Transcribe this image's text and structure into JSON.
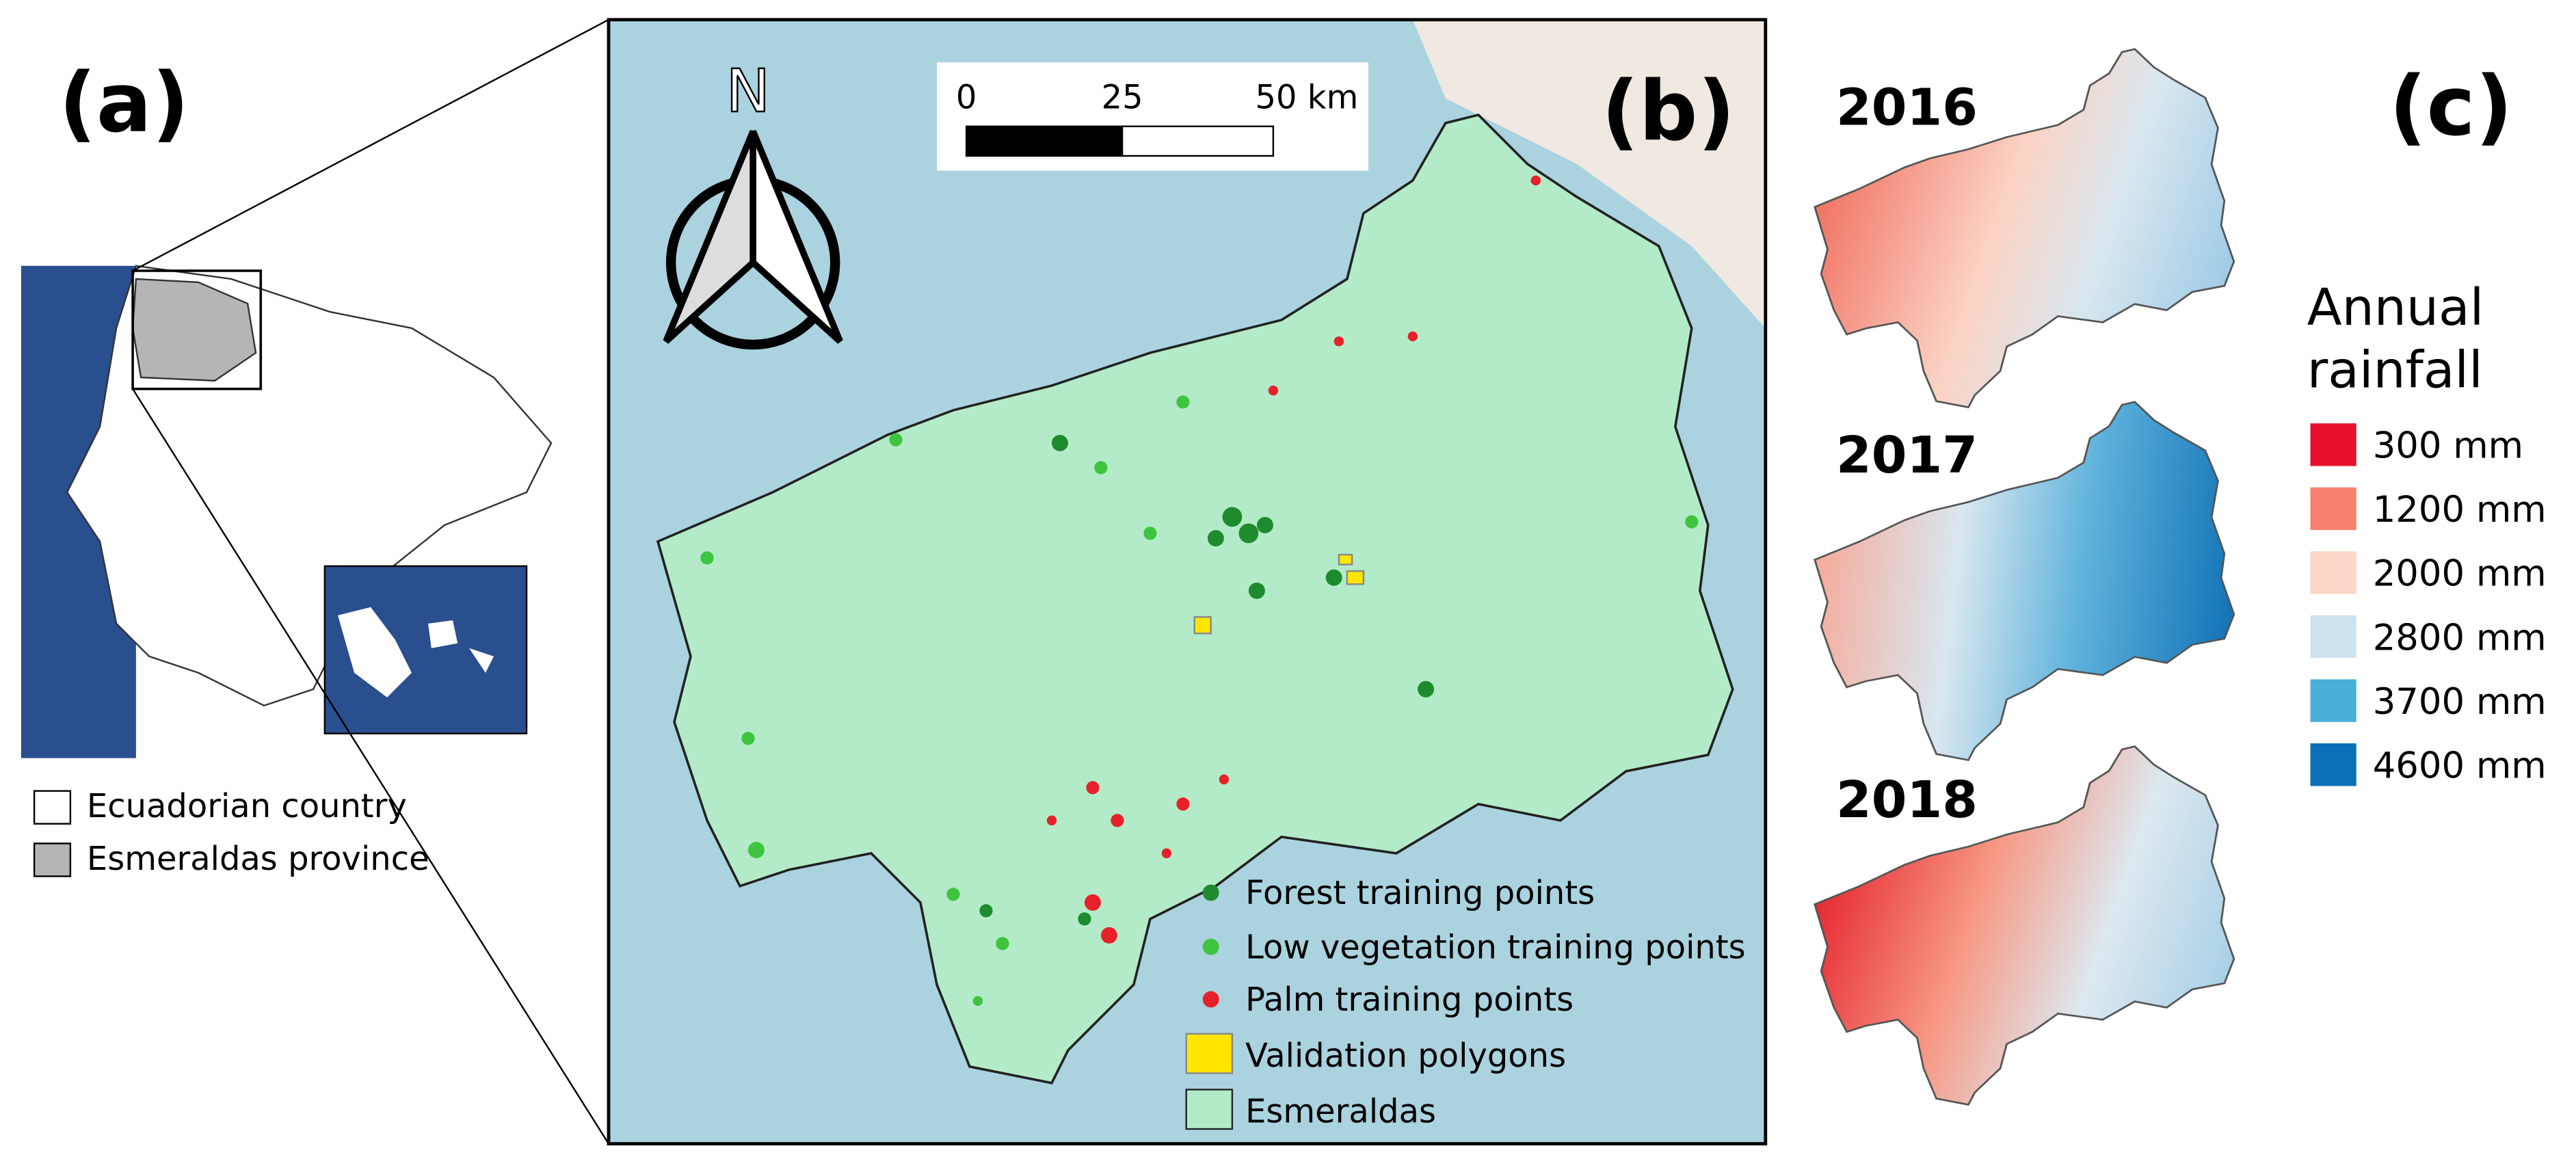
{
  "panel_a": {
    "label": "(a)",
    "legend": [
      "Ecuadorian country",
      "Esmeraldas province"
    ]
  },
  "panel_b": {
    "label": "(b)",
    "north": "N",
    "scale_bar": [
      "0",
      "25",
      "50 km"
    ],
    "legend": [
      "Forest training points",
      "Low vegetation training points",
      "Palm training points",
      "Validation polygons",
      "Esmeraldas"
    ]
  },
  "panel_c": {
    "label": "(c)",
    "years": [
      "2016",
      "2017",
      "2018"
    ],
    "legend_title": [
      "Annual",
      "rainfall"
    ],
    "legend": [
      "300 mm",
      "1200 mm",
      "2000 mm",
      "2800 mm",
      "3700 mm",
      "4600 mm"
    ]
  }
}
